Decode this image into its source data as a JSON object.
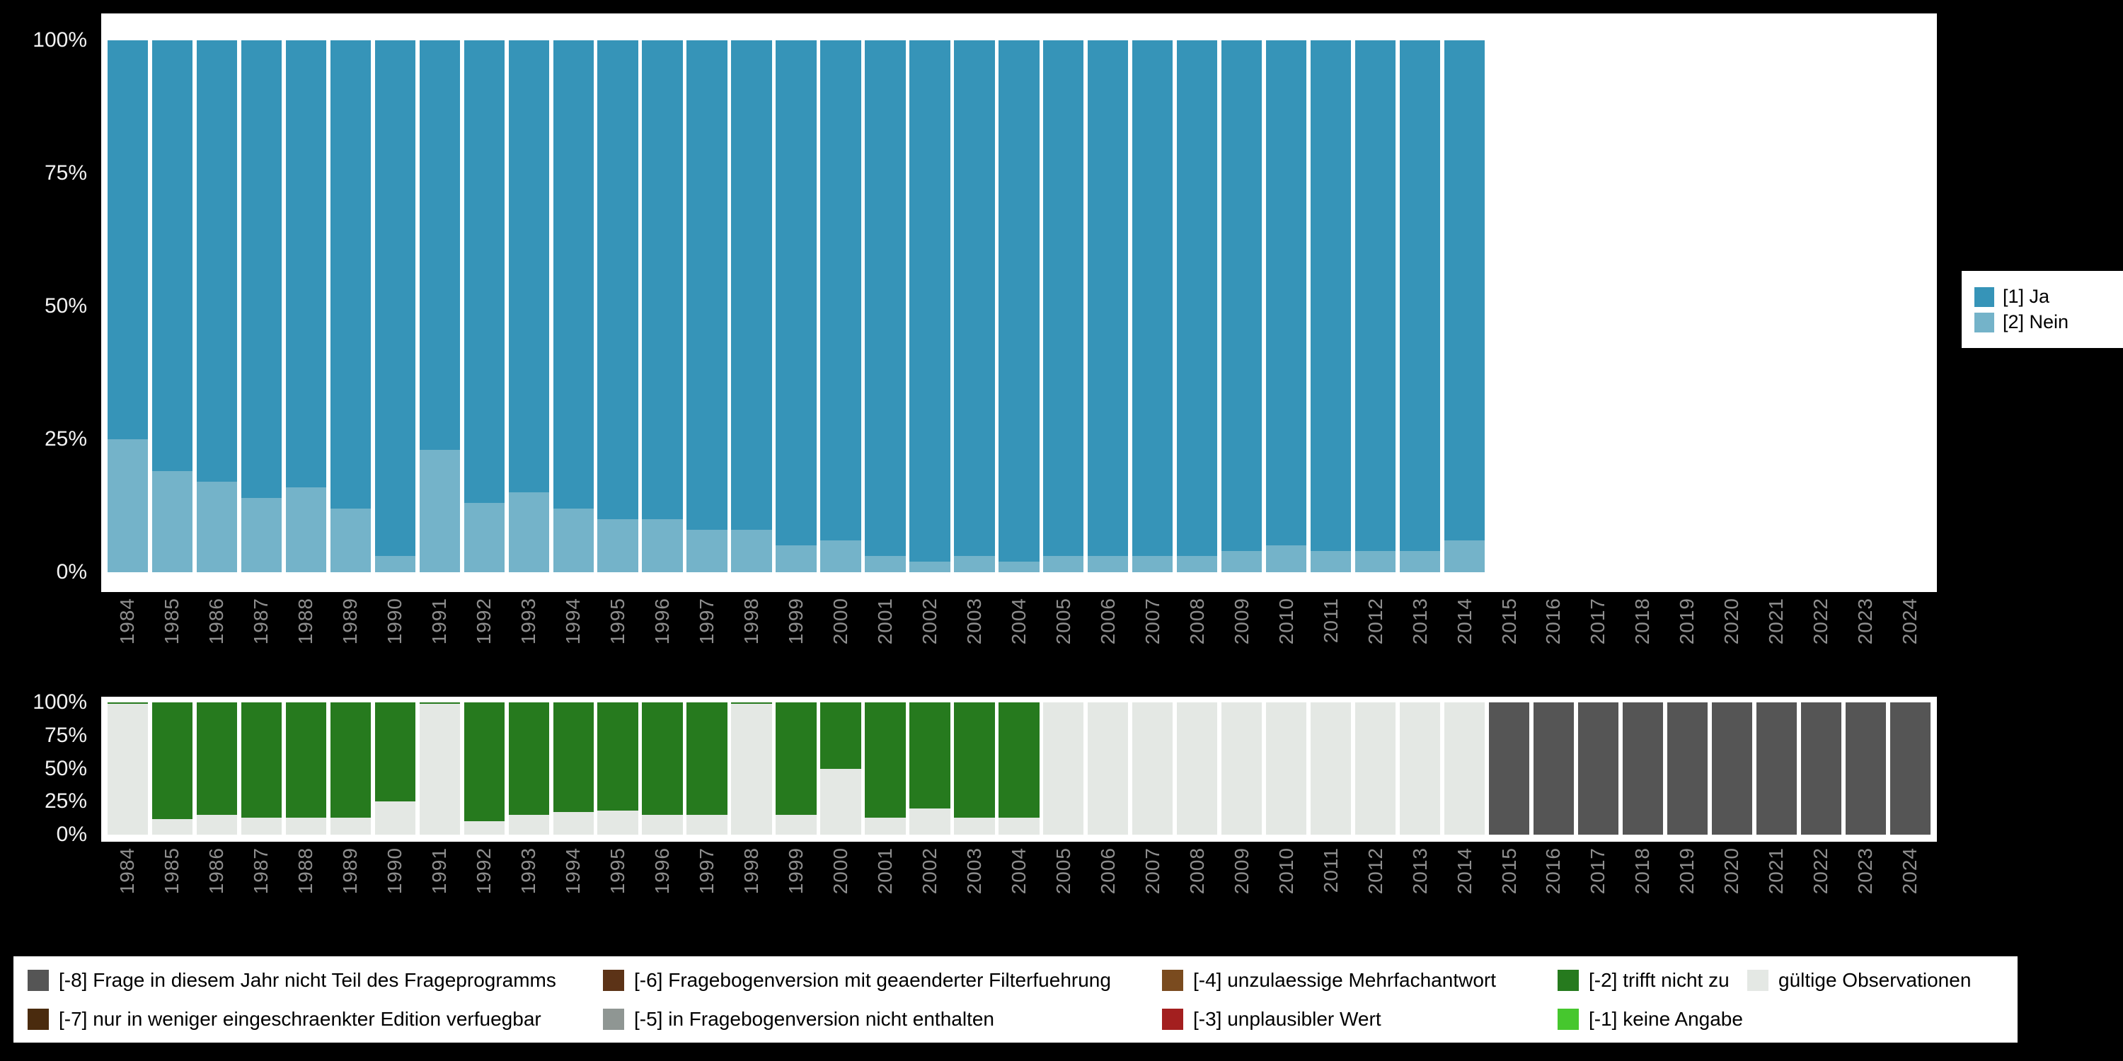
{
  "figure": {
    "background": "#000000",
    "plot_background": "#ffffff",
    "axis_text_color": "#f2f2f2",
    "year_text_color": "#8e8e8e"
  },
  "top_legend": {
    "items": [
      {
        "label": "[1] Ja",
        "color": "#3694b8"
      },
      {
        "label": "[2] Nein",
        "color": "#74b3c9"
      }
    ]
  },
  "bottom_legend": {
    "items": [
      {
        "label": "[-8] Frage in diesem Jahr nicht Teil des Frageprogramms",
        "color": "#555555"
      },
      {
        "label": "[-7] nur in weniger eingeschraenkter Edition verfuegbar",
        "color": "#4a2b0e"
      },
      {
        "label": "[-6] Fragebogenversion mit geaenderter Filterfuehrung",
        "color": "#5c3317"
      },
      {
        "label": "[-5] in Fragebogenversion nicht enthalten",
        "color": "#8f9693"
      },
      {
        "label": "[-4] unzulaessige Mehrfachantwort",
        "color": "#7a4b1f"
      },
      {
        "label": "[-3] unplausibler Wert",
        "color": "#a31f1f"
      },
      {
        "label": "[-2] trifft nicht zu",
        "color": "#267a1e"
      },
      {
        "label": "[-1] keine Angabe",
        "color": "#46c72e"
      },
      {
        "label": "gültige Observationen",
        "color": "#e4e8e4"
      }
    ]
  },
  "chart_data": [
    {
      "type": "bar",
      "stacked": true,
      "stack_order": "bottom-to-top",
      "title": "",
      "xlabel": "",
      "ylabel": "",
      "ylim": [
        0,
        100
      ],
      "unit": "percent",
      "legend_position": "right",
      "grid": false,
      "x": [
        1984,
        1985,
        1986,
        1987,
        1988,
        1989,
        1990,
        1991,
        1992,
        1993,
        1994,
        1995,
        1996,
        1997,
        1998,
        1999,
        2000,
        2001,
        2002,
        2003,
        2004,
        2005,
        2006,
        2007,
        2008,
        2009,
        2010,
        2011,
        2012,
        2013,
        2014,
        2015,
        2016,
        2017,
        2018,
        2019,
        2020,
        2021,
        2022,
        2023,
        2024
      ],
      "yticks": [
        {
          "value": 0,
          "label": "0%"
        },
        {
          "value": 25,
          "label": "25%"
        },
        {
          "value": 50,
          "label": "50%"
        },
        {
          "value": 75,
          "label": "75%"
        },
        {
          "value": 100,
          "label": "100%"
        }
      ],
      "series": [
        {
          "name": "[2] Nein",
          "color": "#74b3c9",
          "values": [
            25,
            19,
            17,
            14,
            16,
            12,
            3,
            23,
            13,
            15,
            12,
            10,
            10,
            8,
            8,
            5,
            6,
            3,
            2,
            3,
            2,
            3,
            3,
            3,
            3,
            4,
            5,
            4,
            4,
            4,
            6,
            0,
            0,
            0,
            0,
            0,
            0,
            0,
            0,
            0,
            0
          ]
        },
        {
          "name": "[1] Ja",
          "color": "#3694b8",
          "values": [
            75,
            81,
            83,
            86,
            84,
            88,
            97,
            77,
            87,
            85,
            88,
            90,
            90,
            92,
            92,
            95,
            94,
            97,
            98,
            97,
            98,
            97,
            97,
            97,
            97,
            96,
            95,
            96,
            96,
            96,
            94,
            0,
            0,
            0,
            0,
            0,
            0,
            0,
            0,
            0,
            0
          ]
        }
      ]
    },
    {
      "type": "bar",
      "stacked": true,
      "stack_order": "bottom-to-top",
      "title": "",
      "xlabel": "",
      "ylabel": "",
      "ylim": [
        0,
        100
      ],
      "unit": "percent",
      "legend_position": "bottom",
      "grid": false,
      "x": [
        1984,
        1985,
        1986,
        1987,
        1988,
        1989,
        1990,
        1991,
        1992,
        1993,
        1994,
        1995,
        1996,
        1997,
        1998,
        1999,
        2000,
        2001,
        2002,
        2003,
        2004,
        2005,
        2006,
        2007,
        2008,
        2009,
        2010,
        2011,
        2012,
        2013,
        2014,
        2015,
        2016,
        2017,
        2018,
        2019,
        2020,
        2021,
        2022,
        2023,
        2024
      ],
      "yticks": [
        {
          "value": 0,
          "label": "0%"
        },
        {
          "value": 25,
          "label": "25%"
        },
        {
          "value": 50,
          "label": "50%"
        },
        {
          "value": 75,
          "label": "75%"
        },
        {
          "value": 100,
          "label": "100%"
        }
      ],
      "series": [
        {
          "name": "gültige Observationen",
          "color": "#e4e8e4",
          "values": [
            99,
            12,
            15,
            13,
            13,
            13,
            25,
            99,
            10,
            15,
            17,
            18,
            15,
            15,
            99,
            15,
            50,
            13,
            20,
            13,
            13,
            100,
            100,
            100,
            100,
            100,
            100,
            100,
            100,
            100,
            100,
            0,
            0,
            0,
            0,
            0,
            0,
            0,
            0,
            0,
            0
          ]
        },
        {
          "name": "[-2] trifft nicht zu",
          "color": "#267a1e",
          "values": [
            1,
            88,
            85,
            87,
            87,
            87,
            75,
            1,
            90,
            85,
            83,
            82,
            85,
            85,
            1,
            85,
            50,
            87,
            80,
            87,
            87,
            0,
            0,
            0,
            0,
            0,
            0,
            0,
            0,
            0,
            0,
            0,
            0,
            0,
            0,
            0,
            0,
            0,
            0,
            0,
            0
          ]
        },
        {
          "name": "[-8] Frage in diesem Jahr nicht Teil des Frageprogramms",
          "color": "#555555",
          "values": [
            0,
            0,
            0,
            0,
            0,
            0,
            0,
            0,
            0,
            0,
            0,
            0,
            0,
            0,
            0,
            0,
            0,
            0,
            0,
            0,
            0,
            0,
            0,
            0,
            0,
            0,
            0,
            0,
            0,
            0,
            0,
            100,
            100,
            100,
            100,
            100,
            100,
            100,
            100,
            100,
            100
          ]
        }
      ]
    }
  ]
}
